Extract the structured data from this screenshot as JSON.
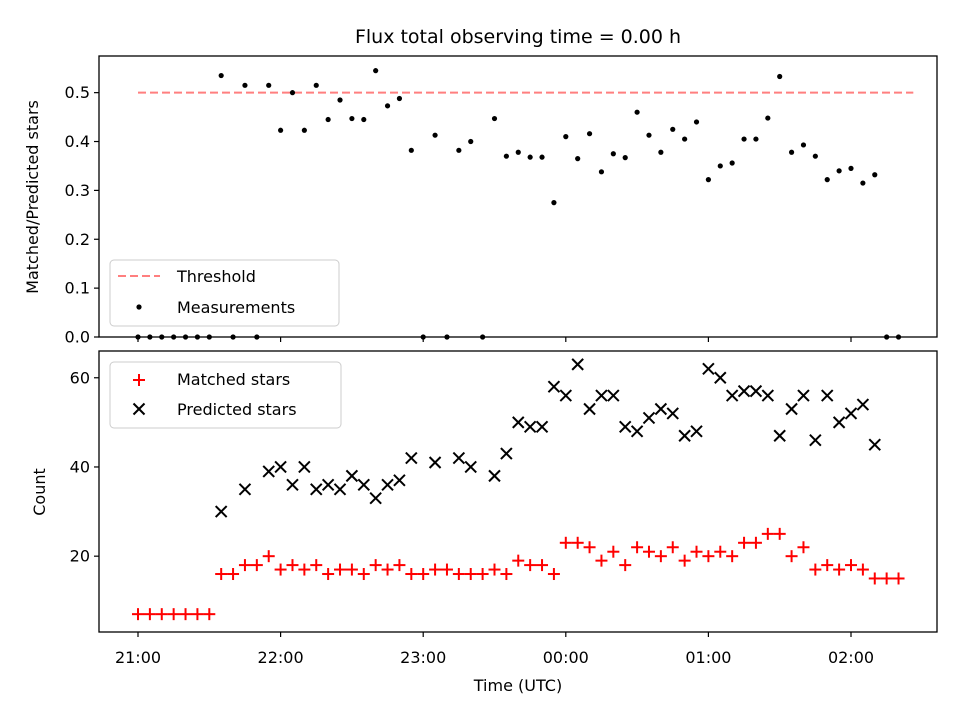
{
  "chart_data": [
    {
      "type": "scatter",
      "title": "Flux total observing time = 0.00 h",
      "ylabel": "Matched/Predicted stars",
      "ylim": [
        0.0,
        0.575
      ],
      "yticks": [
        "0.0",
        "0.1",
        "0.2",
        "0.3",
        "0.4",
        "0.5"
      ],
      "legend": {
        "position": "lower-left",
        "entries": [
          "Threshold",
          "Measurements"
        ]
      },
      "threshold": {
        "name": "Threshold",
        "y": 0.5,
        "x_start": "21:00",
        "x_end": "02:30",
        "color": "#ff7f7f"
      },
      "series": [
        {
          "name": "Measurements",
          "color": "#000000",
          "x": [
            "21:00",
            "21:05",
            "21:10",
            "21:15",
            "21:20",
            "21:25",
            "21:30",
            "21:35",
            "21:40",
            "21:45",
            "21:50",
            "21:55",
            "22:00",
            "22:05",
            "22:10",
            "22:15",
            "22:20",
            "22:25",
            "22:30",
            "22:35",
            "22:40",
            "22:45",
            "22:50",
            "22:55",
            "23:00",
            "23:05",
            "23:10",
            "23:15",
            "23:20",
            "23:25",
            "23:30",
            "23:35",
            "23:40",
            "23:45",
            "23:50",
            "23:55",
            "00:00",
            "00:05",
            "00:10",
            "00:15",
            "00:20",
            "00:25",
            "00:30",
            "00:35",
            "00:40",
            "00:45",
            "00:50",
            "00:55",
            "01:00",
            "01:05",
            "01:10",
            "01:15",
            "01:20",
            "01:25",
            "01:30",
            "01:35",
            "01:40",
            "01:45",
            "01:50",
            "01:55",
            "02:00",
            "02:05",
            "02:10",
            "02:15",
            "02:20"
          ],
          "y": [
            0,
            0,
            0,
            0,
            0,
            0,
            0,
            0.535,
            0,
            0.515,
            0,
            0.515,
            0.423,
            0.5,
            0.423,
            0.515,
            0.445,
            0.485,
            0.447,
            0.445,
            0.545,
            0.473,
            0.488,
            0.382,
            0,
            0.413,
            0,
            0.382,
            0.4,
            0,
            0.447,
            0.37,
            0.378,
            0.368,
            0.368,
            0.275,
            0.41,
            0.365,
            0.416,
            0.338,
            0.375,
            0.367,
            0.46,
            0.413,
            0.378,
            0.425,
            0.405,
            0.44,
            0.322,
            0.35,
            0.356,
            0.405,
            0.405,
            0.448,
            0.533,
            0.378,
            0.393,
            0.37,
            0.322,
            0.34,
            0.345,
            0.315,
            0.332,
            0,
            0
          ]
        }
      ]
    },
    {
      "type": "scatter",
      "xlabel": "Time (UTC)",
      "ylabel": "Count",
      "ylim": [
        3,
        66
      ],
      "yticks": [
        "20",
        "40",
        "60"
      ],
      "xticks": [
        "21:00",
        "22:00",
        "23:00",
        "00:00",
        "01:00",
        "02:00"
      ],
      "legend": {
        "position": "top-left",
        "entries": [
          "Matched stars",
          "Predicted stars"
        ]
      },
      "series": [
        {
          "name": "Matched stars",
          "color": "#ff0000",
          "marker": "plus",
          "x": [
            "21:00",
            "21:05",
            "21:10",
            "21:15",
            "21:20",
            "21:25",
            "21:30",
            "21:35",
            "21:40",
            "21:45",
            "21:50",
            "21:55",
            "22:00",
            "22:05",
            "22:10",
            "22:15",
            "22:20",
            "22:25",
            "22:30",
            "22:35",
            "22:40",
            "22:45",
            "22:50",
            "22:55",
            "23:00",
            "23:05",
            "23:10",
            "23:15",
            "23:20",
            "23:25",
            "23:30",
            "23:35",
            "23:40",
            "23:45",
            "23:50",
            "23:55",
            "00:00",
            "00:05",
            "00:10",
            "00:15",
            "00:20",
            "00:25",
            "00:30",
            "00:35",
            "00:40",
            "00:45",
            "00:50",
            "00:55",
            "01:00",
            "01:05",
            "01:10",
            "01:15",
            "01:20",
            "01:25",
            "01:30",
            "01:35",
            "01:40",
            "01:45",
            "01:50",
            "01:55",
            "02:00",
            "02:05",
            "02:10",
            "02:15",
            "02:20"
          ],
          "y": [
            7,
            7,
            7,
            7,
            7,
            7,
            7,
            16,
            16,
            18,
            18,
            20,
            17,
            18,
            17,
            18,
            16,
            17,
            17,
            16,
            18,
            17,
            18,
            16,
            16,
            17,
            17,
            16,
            16,
            16,
            17,
            16,
            19,
            18,
            18,
            16,
            23,
            23,
            22,
            19,
            21,
            18,
            22,
            21,
            20,
            22,
            19,
            21,
            20,
            21,
            20,
            23,
            23,
            25,
            25,
            20,
            22,
            17,
            18,
            17,
            18,
            17,
            15,
            15,
            15
          ]
        },
        {
          "name": "Predicted stars",
          "color": "#000000",
          "marker": "x",
          "x": [
            "21:35",
            "21:45",
            "21:55",
            "22:00",
            "22:05",
            "22:10",
            "22:15",
            "22:20",
            "22:25",
            "22:30",
            "22:35",
            "22:40",
            "22:45",
            "22:50",
            "22:55",
            "23:05",
            "23:15",
            "23:20",
            "23:30",
            "23:35",
            "23:40",
            "23:45",
            "23:50",
            "23:55",
            "00:00",
            "00:05",
            "00:10",
            "00:15",
            "00:20",
            "00:25",
            "00:30",
            "00:35",
            "00:40",
            "00:45",
            "00:50",
            "00:55",
            "01:00",
            "01:05",
            "01:10",
            "01:15",
            "01:20",
            "01:25",
            "01:30",
            "01:35",
            "01:40",
            "01:45",
            "01:50",
            "01:55",
            "02:00",
            "02:05",
            "02:10"
          ],
          "y": [
            30,
            35,
            39,
            40,
            36,
            40,
            35,
            36,
            35,
            38,
            36,
            33,
            36,
            37,
            42,
            41,
            42,
            40,
            38,
            43,
            50,
            49,
            49,
            58,
            56,
            63,
            53,
            56,
            56,
            49,
            48,
            51,
            53,
            52,
            47,
            48,
            62,
            60,
            56,
            57,
            57,
            56,
            47,
            53,
            56,
            46,
            56,
            50,
            52,
            54,
            45
          ]
        }
      ]
    }
  ]
}
